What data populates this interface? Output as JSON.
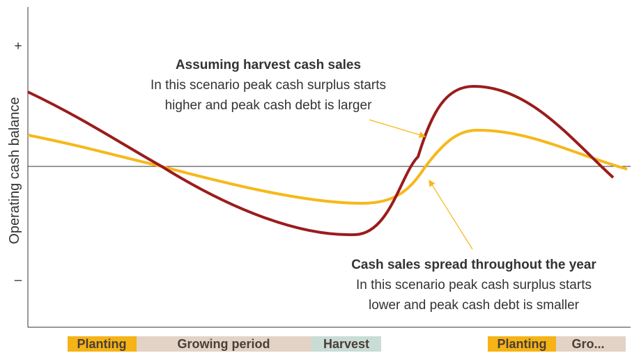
{
  "axis": {
    "label": "Operating cash balance",
    "plus": "+",
    "minus": "–"
  },
  "annotations": [
    {
      "title": "Assuming harvest cash sales",
      "lines": [
        "In this scenario peak cash surplus starts",
        "higher and peak cash debt is larger"
      ]
    },
    {
      "title": "Cash sales spread throughout the year",
      "lines": [
        "In this scenario peak cash surplus starts",
        "lower and peak cash debt is smaller"
      ]
    }
  ],
  "seasons": [
    "Planting",
    "Growing period",
    "Harvest",
    "Planting",
    "Gro..."
  ]
}
